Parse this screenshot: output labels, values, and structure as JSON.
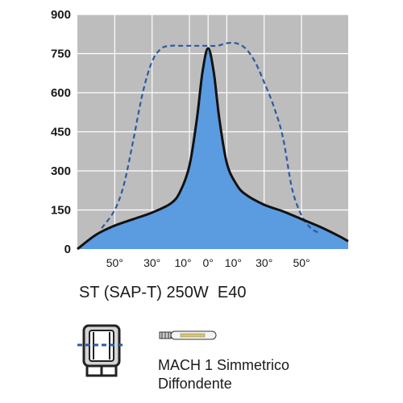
{
  "colors": {
    "plot_background": "#bdbdbd",
    "grid": "#ffffff",
    "fill": "#5b9be0",
    "solid_line": "#111111",
    "dashed_line": "#2c5aa0"
  },
  "chart_data": {
    "type": "line",
    "title": "",
    "xlabel": "",
    "ylabel": "",
    "ylim": [
      0,
      900
    ],
    "yticks": [
      "0",
      "150",
      "300",
      "450",
      "600",
      "750",
      "900"
    ],
    "xtick_labels": [
      "50°",
      "30°",
      "10°",
      "0°",
      "10°",
      "30°",
      "50°"
    ],
    "grid": true,
    "series": [
      {
        "style": "solid",
        "filled": true,
        "x": [
          -70,
          -60,
          -50,
          -40,
          -30,
          -20,
          -15,
          -10,
          -6,
          -3,
          0,
          3,
          6,
          10,
          15,
          20,
          30,
          40,
          50,
          60,
          70,
          75
        ],
        "y": [
          0,
          55,
          90,
          115,
          140,
          175,
          220,
          320,
          500,
          680,
          770,
          680,
          500,
          330,
          250,
          210,
          170,
          145,
          115,
          85,
          50,
          30
        ]
      },
      {
        "style": "dashed",
        "filled": false,
        "x": [
          -57,
          -50,
          -45,
          -40,
          -35,
          -30,
          -25,
          -20,
          -15,
          -10,
          -5,
          0,
          5,
          10,
          15,
          20,
          25,
          30,
          35,
          40,
          45,
          50,
          55,
          60
        ],
        "y": [
          80,
          150,
          250,
          420,
          600,
          720,
          770,
          780,
          780,
          780,
          780,
          780,
          780,
          790,
          790,
          770,
          720,
          640,
          550,
          430,
          230,
          130,
          80,
          60
        ]
      }
    ]
  },
  "caption": "ST (SAP-T) 250W  E40",
  "lamp": {
    "line1": "MACH 1 Simmetrico",
    "line2": "Diffondente"
  },
  "icons": {
    "fixture": "floodlight-fixture-icon",
    "lamp": "tubular-lamp-icon"
  }
}
